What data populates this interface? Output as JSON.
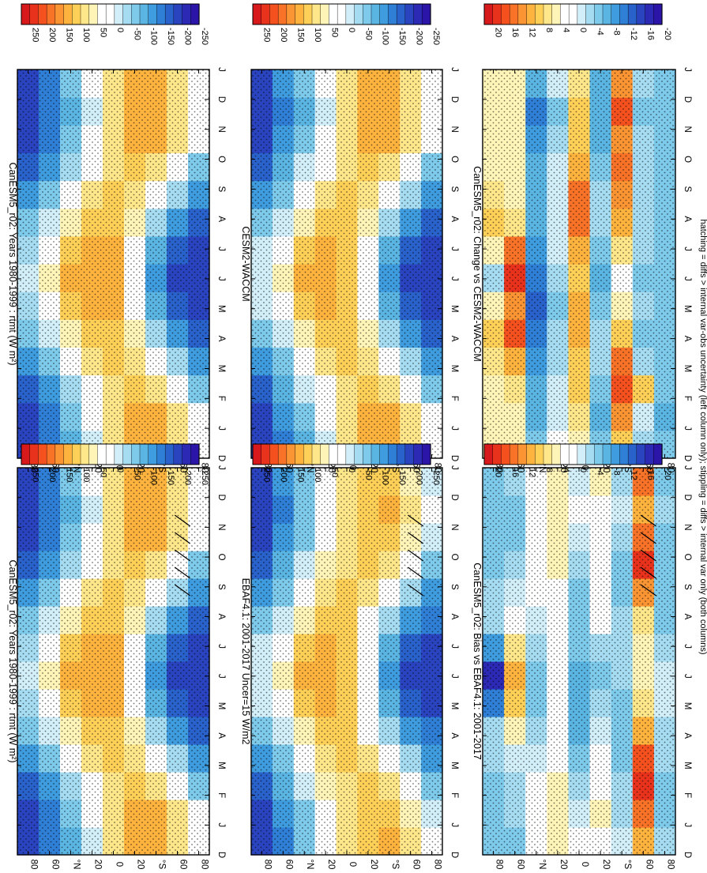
{
  "figure": {
    "footnote": "hatching = diffs > internal var-obs uncertainty (left column only); stippling = diffs > internal var only (both columns)"
  },
  "colorbars": [
    {
      "labels": [
        "250",
        "200",
        "150",
        "100",
        "50",
        "0",
        "-50",
        "-100",
        "-150",
        "-200",
        "-250"
      ],
      "colors": [
        "#d7191c",
        "#e8321c",
        "#f4511f",
        "#f87328",
        "#fb9433",
        "#fdb33e",
        "#fed058",
        "#fee68a",
        "#fff4b8",
        "#ffffff",
        "#ffffff",
        "#d2eef9",
        "#a6dcf2",
        "#7ecaeb",
        "#5bb5e3",
        "#3f9cde",
        "#2f7fd6",
        "#2a62cc",
        "#2a44c0",
        "#2c29b5",
        "#2a15a8"
      ]
    },
    {
      "labels": [
        "20",
        "16",
        "12",
        "8",
        "4",
        "0",
        "-4",
        "-8",
        "-12",
        "-16",
        "-20"
      ],
      "colors": [
        "#d7191c",
        "#e8321c",
        "#f4511f",
        "#f87328",
        "#fb9433",
        "#fdb33e",
        "#fed058",
        "#fee68a",
        "#fff4b8",
        "#ffffff",
        "#ffffff",
        "#d2eef9",
        "#a6dcf2",
        "#7ecaeb",
        "#5bb5e3",
        "#3f9cde",
        "#2f7fd6",
        "#2a62cc",
        "#2a44c0",
        "#2c29b5",
        "#2a15a8"
      ]
    }
  ],
  "chart_data": [
    {
      "type": "heatmap",
      "title": "CanESM5_r02: Years 1980-1999 : rtmt (W m²)",
      "x": [
        "D",
        "J",
        "F",
        "M",
        "A",
        "M",
        "J",
        "J",
        "A",
        "S",
        "O",
        "N",
        "D",
        "J"
      ],
      "y_ticks": [
        "80",
        "60",
        "°N",
        "20",
        "0",
        "20",
        "°S",
        "60",
        "80"
      ],
      "colorbar": 0,
      "hatched": true,
      "z_min": -250,
      "z_max": 250,
      "values": [
        [
          -200,
          -190,
          -170,
          -130,
          -80,
          -40,
          -25,
          -40,
          -80,
          -130,
          -170,
          -190,
          -200,
          -190
        ],
        [
          -150,
          -135,
          -110,
          -70,
          -25,
          20,
          40,
          20,
          -25,
          -70,
          -110,
          -135,
          -150,
          -135
        ],
        [
          -90,
          -70,
          -40,
          0,
          50,
          90,
          110,
          90,
          50,
          0,
          -40,
          -70,
          -90,
          -70
        ],
        [
          -20,
          0,
          30,
          60,
          100,
          120,
          130,
          120,
          100,
          60,
          30,
          0,
          -20,
          0
        ],
        [
          60,
          70,
          80,
          90,
          100,
          110,
          110,
          110,
          100,
          90,
          80,
          70,
          60,
          70
        ],
        [
          110,
          110,
          100,
          80,
          40,
          10,
          0,
          10,
          40,
          80,
          100,
          110,
          110,
          110
        ],
        [
          120,
          110,
          80,
          30,
          -40,
          -100,
          -120,
          -100,
          -40,
          30,
          80,
          110,
          120,
          110
        ],
        [
          80,
          60,
          20,
          -50,
          -120,
          -170,
          -190,
          -170,
          -120,
          -50,
          20,
          60,
          80,
          60
        ],
        [
          10,
          -10,
          -60,
          -120,
          -160,
          -190,
          -200,
          -190,
          -160,
          -120,
          -60,
          -10,
          10,
          -10
        ]
      ]
    },
    {
      "type": "heatmap",
      "title": "CanESM5_r02: Years 1980-1999 : rtmt (W m²)",
      "x": [
        "D",
        "J",
        "F",
        "M",
        "A",
        "M",
        "J",
        "J",
        "A",
        "S",
        "O",
        "N",
        "D",
        "J"
      ],
      "y_ticks": [
        "80",
        "60",
        "°N",
        "20",
        "0",
        "20",
        "°S",
        "60",
        "80"
      ],
      "colorbar": 0,
      "hatched": false,
      "z_min": -250,
      "z_max": 250,
      "values": [
        [
          -200,
          -190,
          -170,
          -130,
          -80,
          -40,
          -25,
          -40,
          -80,
          -130,
          -170,
          -190,
          -200,
          -190
        ],
        [
          -150,
          -135,
          -110,
          -70,
          -25,
          20,
          40,
          20,
          -25,
          -70,
          -110,
          -135,
          -150,
          -135
        ],
        [
          -90,
          -70,
          -40,
          0,
          50,
          90,
          110,
          90,
          50,
          0,
          -40,
          -70,
          -90,
          -70
        ],
        [
          -20,
          0,
          30,
          60,
          100,
          120,
          130,
          120,
          100,
          60,
          30,
          0,
          -20,
          0
        ],
        [
          60,
          70,
          80,
          90,
          100,
          110,
          110,
          110,
          100,
          90,
          80,
          70,
          60,
          70
        ],
        [
          110,
          110,
          100,
          80,
          40,
          10,
          0,
          10,
          40,
          80,
          100,
          110,
          110,
          110
        ],
        [
          120,
          110,
          80,
          30,
          -40,
          -100,
          -120,
          -100,
          -40,
          30,
          80,
          110,
          120,
          110
        ],
        [
          80,
          60,
          20,
          -50,
          -120,
          -170,
          -190,
          -170,
          -120,
          -50,
          20,
          60,
          80,
          60
        ],
        [
          10,
          -10,
          -60,
          -120,
          -160,
          -190,
          -200,
          -190,
          -160,
          -120,
          -60,
          -10,
          10,
          -10
        ]
      ]
    },
    {
      "type": "heatmap",
      "title": "EBAF4.1: 2001-2017 Uncer=15 W/m2",
      "x": [
        "D",
        "J",
        "F",
        "M",
        "A",
        "M",
        "J",
        "J",
        "A",
        "S",
        "O",
        "N",
        "D",
        "J"
      ],
      "y_ticks": [
        "80",
        "60",
        "°N",
        "20",
        "0",
        "20",
        "°S",
        "60",
        "80"
      ],
      "colorbar": 0,
      "hatched": true,
      "z_min": -250,
      "z_max": 250,
      "values": [
        [
          -190,
          -180,
          -160,
          -120,
          -70,
          -30,
          -15,
          -30,
          -70,
          -120,
          -160,
          -180,
          -190,
          -180
        ],
        [
          -140,
          -125,
          -100,
          -60,
          -15,
          25,
          45,
          25,
          -15,
          -60,
          -100,
          -125,
          -140,
          -125
        ],
        [
          -80,
          -60,
          -30,
          10,
          55,
          95,
          110,
          95,
          55,
          10,
          -30,
          -60,
          -80,
          -60
        ],
        [
          -10,
          10,
          40,
          70,
          100,
          120,
          125,
          120,
          100,
          70,
          40,
          10,
          -10,
          10
        ],
        [
          60,
          65,
          75,
          85,
          95,
          100,
          100,
          100,
          95,
          85,
          75,
          65,
          60,
          65
        ],
        [
          105,
          105,
          95,
          75,
          35,
          5,
          -5,
          5,
          35,
          75,
          95,
          105,
          105,
          105
        ],
        [
          115,
          105,
          75,
          25,
          -40,
          -95,
          -115,
          -95,
          -40,
          25,
          75,
          105,
          115,
          105
        ],
        [
          75,
          55,
          15,
          -45,
          -110,
          -160,
          -180,
          -160,
          -110,
          -45,
          15,
          55,
          75,
          55
        ],
        [
          5,
          -15,
          -60,
          -115,
          -150,
          -180,
          -190,
          -180,
          -150,
          -115,
          -60,
          -15,
          5,
          -15
        ]
      ]
    },
    {
      "type": "heatmap",
      "title": "CESM2-WACCM",
      "x": [
        "D",
        "J",
        "F",
        "M",
        "A",
        "M",
        "J",
        "J",
        "A",
        "S",
        "O",
        "N",
        "D",
        "J"
      ],
      "y_ticks": [
        "80",
        "60",
        "°N",
        "20",
        "0",
        "20",
        "°S",
        "60",
        "80"
      ],
      "colorbar": 0,
      "hatched": false,
      "z_min": -250,
      "z_max": 250,
      "values": [
        [
          -195,
          -185,
          -165,
          -125,
          -75,
          -35,
          -20,
          -35,
          -75,
          -125,
          -165,
          -185,
          -195,
          -185
        ],
        [
          -145,
          -130,
          -105,
          -65,
          -20,
          25,
          45,
          25,
          -20,
          -65,
          -105,
          -130,
          -145,
          -130
        ],
        [
          -85,
          -65,
          -35,
          5,
          55,
          95,
          115,
          95,
          55,
          5,
          -35,
          -65,
          -85,
          -65
        ],
        [
          -15,
          5,
          35,
          65,
          100,
          120,
          130,
          120,
          100,
          65,
          35,
          5,
          -15,
          5
        ],
        [
          60,
          70,
          80,
          90,
          100,
          105,
          105,
          105,
          100,
          90,
          80,
          70,
          60,
          70
        ],
        [
          110,
          110,
          100,
          80,
          40,
          10,
          0,
          10,
          40,
          80,
          100,
          110,
          110,
          110
        ],
        [
          120,
          110,
          80,
          30,
          -40,
          -100,
          -120,
          -100,
          -40,
          30,
          80,
          110,
          120,
          110
        ],
        [
          80,
          60,
          20,
          -50,
          -120,
          -170,
          -190,
          -170,
          -120,
          -50,
          20,
          60,
          80,
          60
        ],
        [
          10,
          -10,
          -60,
          -120,
          -160,
          -190,
          -200,
          -190,
          -160,
          -120,
          -60,
          -10,
          10,
          -10
        ]
      ]
    },
    {
      "type": "heatmap",
      "title": "CanESM5_r02: Bias vs EBAF4.1: 2001-2017",
      "x": [
        "D",
        "J",
        "F",
        "M",
        "A",
        "M",
        "J",
        "J",
        "A",
        "S",
        "O",
        "N",
        "D",
        "J"
      ],
      "y_ticks": [
        "80",
        "60",
        "°N",
        "20",
        "0",
        "20",
        "°S",
        "60",
        "80"
      ],
      "colorbar": 1,
      "hatched": true,
      "z_min": -20,
      "z_max": 20,
      "values": [
        [
          -6,
          -6,
          -5,
          -3,
          -4,
          -12,
          -18,
          -10,
          -4,
          -4,
          -6,
          -6,
          -6,
          -6
        ],
        [
          -5,
          -4,
          -3,
          -2,
          4,
          8,
          10,
          6,
          2,
          -2,
          -4,
          -5,
          -5,
          -4
        ],
        [
          2,
          2,
          0,
          -2,
          -4,
          -6,
          -6,
          -4,
          -2,
          0,
          2,
          2,
          2,
          2
        ],
        [
          4,
          4,
          3,
          2,
          1,
          0,
          0,
          0,
          1,
          2,
          3,
          4,
          4,
          4
        ],
        [
          0,
          -2,
          -4,
          -6,
          -8,
          -8,
          -8,
          -6,
          -6,
          -6,
          -4,
          -2,
          0,
          -2
        ],
        [
          2,
          3,
          2,
          0,
          -2,
          -4,
          -6,
          -4,
          0,
          2,
          2,
          2,
          2,
          3
        ],
        [
          -2,
          -4,
          -4,
          -6,
          -6,
          -6,
          -4,
          -4,
          -4,
          -6,
          -6,
          -4,
          -2,
          -4
        ],
        [
          10,
          14,
          18,
          16,
          10,
          6,
          4,
          4,
          6,
          12,
          18,
          14,
          10,
          14
        ],
        [
          -4,
          -6,
          -6,
          -4,
          -4,
          -2,
          -2,
          -4,
          -6,
          -6,
          -6,
          -6,
          -4,
          -6
        ]
      ]
    },
    {
      "type": "heatmap",
      "title": "CanESM5_r02: Change vs CESM2-WACCM",
      "x": [
        "D",
        "J",
        "F",
        "M",
        "A",
        "M",
        "J",
        "J",
        "A",
        "S",
        "O",
        "N",
        "D",
        "J"
      ],
      "y_ticks": [
        "80",
        "60",
        "°N",
        "20",
        "0",
        "20",
        "°S",
        "60",
        "80"
      ],
      "colorbar": 1,
      "hatched": false,
      "z_min": -20,
      "z_max": 20,
      "values": [
        [
          4,
          4,
          4,
          6,
          8,
          4,
          -4,
          4,
          8,
          6,
          4,
          4,
          4,
          4
        ],
        [
          4,
          4,
          6,
          10,
          16,
          12,
          18,
          14,
          6,
          4,
          4,
          4,
          4,
          4
        ],
        [
          -6,
          -8,
          -8,
          -10,
          -12,
          -14,
          -12,
          -10,
          -8,
          -8,
          -8,
          -10,
          -12,
          -8
        ],
        [
          0,
          -2,
          -2,
          -4,
          -4,
          -6,
          -4,
          -2,
          -2,
          -2,
          -2,
          -4,
          -6,
          -2
        ],
        [
          4,
          6,
          8,
          8,
          10,
          10,
          8,
          10,
          14,
          14,
          10,
          8,
          8,
          6
        ],
        [
          -6,
          -8,
          -6,
          -4,
          -4,
          -6,
          -8,
          -6,
          -4,
          -4,
          -6,
          -8,
          -8,
          -8
        ],
        [
          8,
          12,
          16,
          14,
          8,
          4,
          2,
          6,
          10,
          12,
          14,
          12,
          16,
          12
        ],
        [
          -4,
          -2,
          8,
          -4,
          -6,
          -4,
          -6,
          -4,
          -4,
          -4,
          -4,
          -4,
          -6,
          -4
        ],
        [
          -6,
          -8,
          -6,
          -6,
          -6,
          -6,
          -6,
          -6,
          -6,
          -6,
          -6,
          -6,
          -6,
          -6
        ]
      ]
    }
  ]
}
